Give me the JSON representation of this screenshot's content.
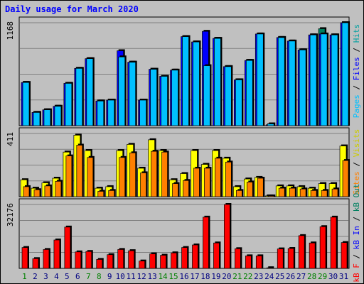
{
  "title": "Daily usage for March 2020",
  "colors": {
    "hits": "#00c0ff",
    "files": "#0000ff",
    "pages": "#008060",
    "visits": "#ffff00",
    "sites": "#ff8000",
    "kb": "#ff0000",
    "weekend_day": "#008000",
    "weekday": "#000080",
    "label_hits": "#00a0a0",
    "label_files": "#0000ff",
    "label_pages": "#00c0ff",
    "label_visits": "#cccc00",
    "label_sites": "#ff8000",
    "label_kbf": "#ff0000",
    "label_kbin": "#0000ff",
    "label_kbout": "#008060"
  },
  "chart_data": [
    {
      "type": "bar",
      "panel": "requests",
      "y_max_label": "1168",
      "ylim": [
        0,
        1168
      ],
      "side_labels": [
        "Hits",
        "Files",
        "Pages"
      ],
      "categories": [
        "1",
        "2",
        "3",
        "4",
        "5",
        "6",
        "7",
        "8",
        "9",
        "10",
        "11",
        "12",
        "13",
        "14",
        "15",
        "16",
        "17",
        "18",
        "19",
        "20",
        "21",
        "22",
        "23",
        "24",
        "25",
        "26",
        "27",
        "28",
        "29",
        "30",
        "31"
      ],
      "series": [
        {
          "name": "Hits",
          "values": [
            490,
            150,
            180,
            220,
            480,
            650,
            760,
            280,
            290,
            780,
            720,
            290,
            640,
            560,
            630,
            1010,
            950,
            680,
            990,
            670,
            520,
            740,
            1040,
            20,
            1000,
            960,
            860,
            1030,
            1040,
            1030,
            1168
          ]
        },
        {
          "name": "Files",
          "values": [
            490,
            150,
            180,
            220,
            480,
            650,
            760,
            280,
            290,
            850,
            720,
            290,
            640,
            560,
            630,
            1010,
            950,
            1070,
            990,
            670,
            520,
            740,
            1040,
            10,
            1000,
            960,
            860,
            1030,
            1040,
            1030,
            1168
          ]
        },
        {
          "name": "Pages",
          "values": [
            0,
            0,
            0,
            0,
            0,
            0,
            0,
            0,
            0,
            0,
            0,
            0,
            0,
            0,
            0,
            0,
            0,
            0,
            0,
            0,
            0,
            0,
            0,
            0,
            0,
            0,
            0,
            0,
            1100,
            0,
            0
          ]
        }
      ]
    },
    {
      "type": "bar",
      "panel": "visitors",
      "y_max_label": "411",
      "ylim": [
        0,
        411
      ],
      "side_labels": [
        "Visits",
        "Sites"
      ],
      "categories": [
        "1",
        "2",
        "3",
        "4",
        "5",
        "6",
        "7",
        "8",
        "9",
        "10",
        "11",
        "12",
        "13",
        "14",
        "15",
        "16",
        "17",
        "18",
        "19",
        "20",
        "21",
        "22",
        "23",
        "24",
        "25",
        "26",
        "27",
        "28",
        "29",
        "30",
        "31"
      ],
      "series": [
        {
          "name": "Visits",
          "values": [
            110,
            55,
            90,
            120,
            290,
            400,
            300,
            55,
            65,
            300,
            340,
            185,
            370,
            300,
            110,
            150,
            300,
            210,
            300,
            250,
            65,
            115,
            125,
            5,
            70,
            70,
            65,
            55,
            85,
            85,
            330
          ]
        },
        {
          "name": "Sites",
          "values": [
            65,
            45,
            70,
            100,
            265,
            335,
            255,
            35,
            40,
            255,
            285,
            155,
            295,
            290,
            85,
            105,
            185,
            185,
            250,
            225,
            40,
            95,
            120,
            5,
            55,
            55,
            50,
            40,
            40,
            50,
            235
          ]
        }
      ]
    },
    {
      "type": "bar",
      "panel": "kbytes",
      "y_max_label": "32176",
      "ylim": [
        0,
        32176
      ],
      "side_labels": [
        "kB F",
        "kB In",
        "kB Out"
      ],
      "categories": [
        "1",
        "2",
        "3",
        "4",
        "5",
        "6",
        "7",
        "8",
        "9",
        "10",
        "11",
        "12",
        "13",
        "14",
        "15",
        "16",
        "17",
        "18",
        "19",
        "20",
        "21",
        "22",
        "23",
        "24",
        "25",
        "26",
        "27",
        "28",
        "29",
        "30",
        "31"
      ],
      "series": [
        {
          "name": "kB F",
          "values": [
            10500,
            4900,
            9500,
            14300,
            20800,
            8300,
            8500,
            4500,
            6900,
            9500,
            8900,
            3700,
            7300,
            6600,
            7800,
            10500,
            11800,
            25800,
            12800,
            32176,
            9900,
            6300,
            6300,
            300,
            9800,
            10000,
            16500,
            12800,
            21000,
            25800,
            13000
          ]
        }
      ]
    }
  ]
}
